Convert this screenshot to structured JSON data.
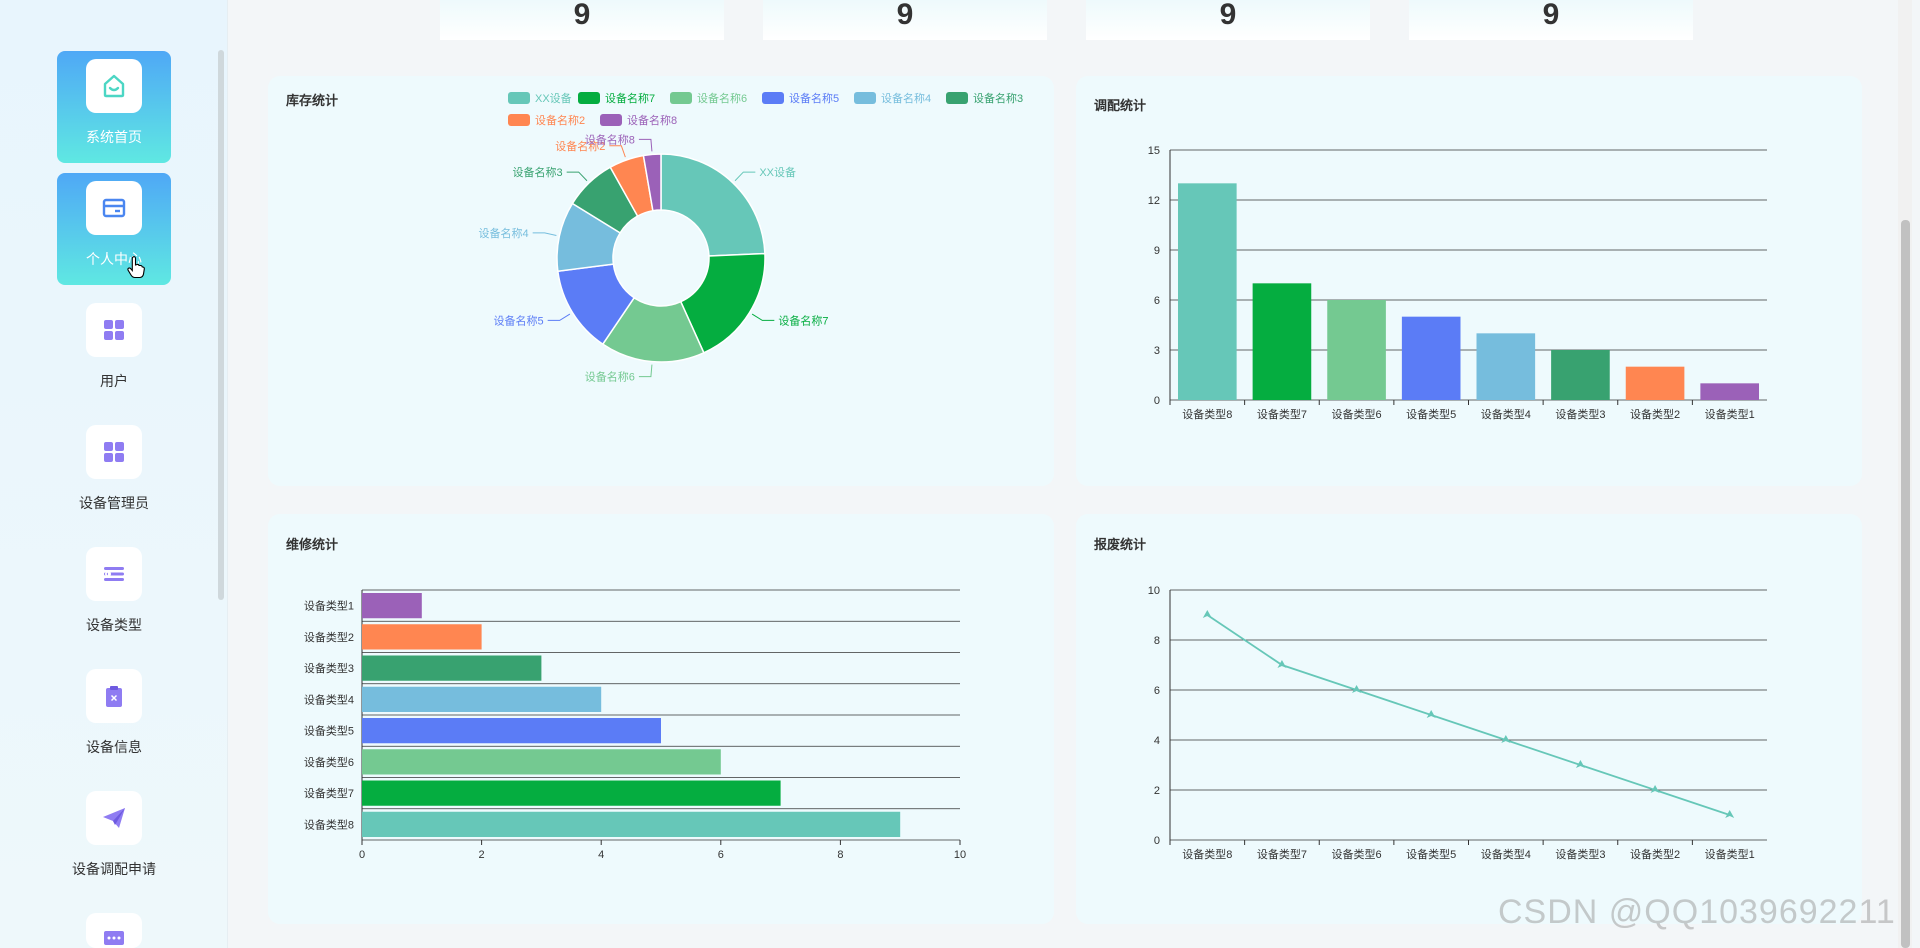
{
  "sidebar": {
    "items": [
      {
        "label": "系统首页",
        "icon": "home-icon",
        "active": true
      },
      {
        "label": "个人中心",
        "icon": "id-card-icon",
        "active": true
      },
      {
        "label": "用户",
        "icon": "grid-icon",
        "active": false
      },
      {
        "label": "设备管理员",
        "icon": "grid-icon",
        "active": false
      },
      {
        "label": "设备类型",
        "icon": "list-icon",
        "active": false
      },
      {
        "label": "设备信息",
        "icon": "clipboard-icon",
        "active": false
      },
      {
        "label": "设备调配申请",
        "icon": "paper-plane-icon",
        "active": false
      }
    ]
  },
  "stats": [
    "9",
    "9",
    "9",
    "9"
  ],
  "colors": {
    "teal": "#66c7b8",
    "green": "#05ad40",
    "mint": "#74c991",
    "blue": "#5b7cf6",
    "sky": "#76bddd",
    "forest": "#38a270",
    "orange": "#ff8651",
    "purple": "#9b61b8",
    "accent": "#4fa8f6",
    "icon_purple": "#8f7cf2"
  },
  "panels": {
    "inventory": {
      "title": "库存统计"
    },
    "allocation": {
      "title": "调配统计"
    },
    "repair": {
      "title": "维修统计"
    },
    "scrap": {
      "title": "报废统计"
    }
  },
  "chart_data": [
    {
      "id": "inventory",
      "type": "pie",
      "title": "库存统计",
      "legend_position": "top-right",
      "labels": [
        "XX设备",
        "设备名称7",
        "设备名称6",
        "设备名称5",
        "设备名称4",
        "设备名称3",
        "设备名称2",
        "设备名称8"
      ],
      "values": [
        9,
        7,
        6,
        5,
        4,
        3,
        2,
        1
      ]
    },
    {
      "id": "allocation",
      "type": "bar",
      "title": "调配统计",
      "categories": [
        "设备类型8",
        "设备类型7",
        "设备类型6",
        "设备类型5",
        "设备类型4",
        "设备类型3",
        "设备类型2",
        "设备类型1"
      ],
      "values": [
        13,
        7,
        6,
        5,
        4,
        3,
        2,
        1
      ],
      "ylim": [
        0,
        15
      ],
      "yticks": [
        "0",
        "3",
        "6",
        "9",
        "12",
        "15"
      ],
      "grid": true
    },
    {
      "id": "repair",
      "type": "bar",
      "orientation": "horizontal",
      "title": "维修统计",
      "categories": [
        "设备类型8",
        "设备类型7",
        "设备类型6",
        "设备类型5",
        "设备类型4",
        "设备类型3",
        "设备类型2",
        "设备类型1"
      ],
      "values": [
        9,
        7,
        6,
        5,
        4,
        3,
        2,
        1
      ],
      "xlim": [
        0,
        10
      ],
      "xticks": [
        "0",
        "2",
        "4",
        "6",
        "8",
        "10"
      ],
      "grid": true
    },
    {
      "id": "scrap",
      "type": "line",
      "title": "报废统计",
      "categories": [
        "设备类型8",
        "设备类型7",
        "设备类型6",
        "设备类型5",
        "设备类型4",
        "设备类型3",
        "设备类型2",
        "设备类型1"
      ],
      "values": [
        9,
        7,
        6,
        5,
        4,
        3,
        2,
        1
      ],
      "ylim": [
        0,
        10
      ],
      "yticks": [
        "0",
        "2",
        "4",
        "6",
        "8",
        "10"
      ],
      "grid": true
    }
  ],
  "watermark": "CSDN @QQ1039692211"
}
